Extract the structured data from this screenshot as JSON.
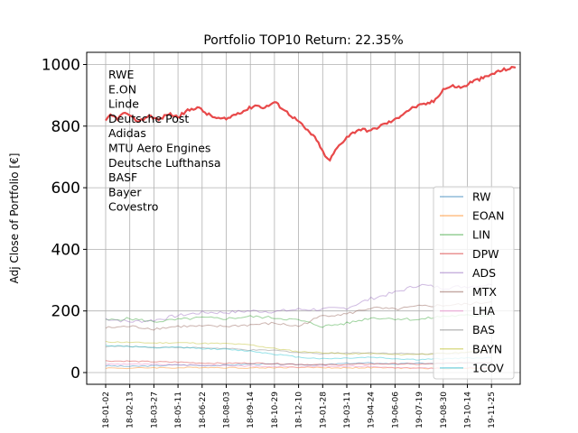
{
  "chart_data": {
    "type": "line",
    "title": "Portfolio TOP10 Return: 22.35%",
    "xlabel": "",
    "ylabel": "Adj Close of Portfolio [€]",
    "ylim": [
      -40,
      1040
    ],
    "yticks": [
      0,
      200,
      400,
      600,
      800,
      1000
    ],
    "grid": true,
    "legend_position": "lower-right",
    "x_tick_labels": [
      "18-01-02",
      "18-02-13",
      "18-03-27",
      "18-05-11",
      "18-06-22",
      "18-08-03",
      "18-09-14",
      "18-10-29",
      "18-12-10",
      "19-01-28",
      "19-03-11",
      "19-04-24",
      "19-06-06",
      "19-07-19",
      "19-08-30",
      "19-10-14",
      "19-11-25"
    ],
    "annotation_lines": [
      "RWE",
      "E.ON",
      "Linde",
      "Deutsche Post",
      "Adidas",
      "MTU Aero Engines",
      "Deutsche Lufthansa",
      "BASF",
      "Bayer",
      "Covestro"
    ],
    "portfolio": {
      "color": "#e8494a",
      "points": [
        [
          0,
          815
        ],
        [
          0.2,
          835
        ],
        [
          0.5,
          825
        ],
        [
          0.8,
          845
        ],
        [
          1,
          830
        ],
        [
          1.4,
          815
        ],
        [
          1.8,
          835
        ],
        [
          2.2,
          820
        ],
        [
          2.6,
          840
        ],
        [
          3,
          830
        ],
        [
          3.4,
          850
        ],
        [
          3.8,
          862
        ],
        [
          4.2,
          840
        ],
        [
          4.6,
          825
        ],
        [
          5,
          822
        ],
        [
          5.4,
          840
        ],
        [
          5.8,
          852
        ],
        [
          6.2,
          868
        ],
        [
          6.6,
          860
        ],
        [
          7,
          878
        ],
        [
          7.3,
          860
        ],
        [
          7.6,
          840
        ],
        [
          8,
          815
        ],
        [
          8.3,
          790
        ],
        [
          8.6,
          770
        ],
        [
          8.9,
          735
        ],
        [
          9.1,
          700
        ],
        [
          9.3,
          690
        ],
        [
          9.6,
          730
        ],
        [
          10,
          765
        ],
        [
          10.5,
          790
        ],
        [
          11,
          785
        ],
        [
          11.5,
          805
        ],
        [
          12,
          820
        ],
        [
          12.4,
          845
        ],
        [
          12.8,
          862
        ],
        [
          13.2,
          870
        ],
        [
          13.6,
          880
        ],
        [
          14,
          920
        ],
        [
          14.4,
          930
        ],
        [
          14.8,
          925
        ],
        [
          15.2,
          945
        ],
        [
          15.5,
          952
        ],
        [
          15.8,
          960
        ],
        [
          16.2,
          975
        ],
        [
          16.6,
          985
        ],
        [
          17.0,
          990
        ]
      ]
    },
    "series": [
      {
        "name": "RW",
        "color": "#1f77b4",
        "values": [
          22,
          20,
          22,
          25,
          23,
          24,
          28,
          27,
          26,
          25,
          30,
          31,
          28,
          30,
          29,
          31,
          30
        ]
      },
      {
        "name": "EOAN",
        "color": "#ff7f0e",
        "values": [
          15,
          14,
          16,
          15,
          17,
          16,
          15,
          16,
          17,
          16,
          15,
          16,
          15,
          14,
          13,
          14,
          15
        ]
      },
      {
        "name": "LIN",
        "color": "#2ca02c",
        "values": [
          170,
          175,
          165,
          172,
          178,
          175,
          182,
          178,
          170,
          150,
          160,
          178,
          175,
          172,
          183,
          185,
          187
        ]
      },
      {
        "name": "DPW",
        "color": "#d62728",
        "values": [
          38,
          37,
          35,
          34,
          31,
          30,
          31,
          29,
          27,
          25,
          26,
          28,
          29,
          27,
          30,
          32,
          33
        ]
      },
      {
        "name": "ADS",
        "color": "#9467bd",
        "values": [
          175,
          165,
          170,
          185,
          195,
          195,
          200,
          198,
          205,
          205,
          210,
          240,
          260,
          285,
          275,
          280,
          285
        ]
      },
      {
        "name": "MTX",
        "color": "#8c564b",
        "values": [
          145,
          150,
          142,
          150,
          150,
          150,
          155,
          160,
          150,
          185,
          190,
          210,
          205,
          215,
          218,
          222,
          230
        ]
      },
      {
        "name": "LHA",
        "color": "#e377c2",
        "values": [
          27,
          28,
          26,
          25,
          24,
          23,
          21,
          19,
          19,
          20,
          21,
          20,
          15,
          14,
          15,
          16,
          16
        ]
      },
      {
        "name": "BAS",
        "color": "#7f7f7f",
        "values": [
          85,
          85,
          82,
          82,
          80,
          78,
          73,
          72,
          65,
          62,
          64,
          64,
          62,
          60,
          62,
          64,
          66
        ]
      },
      {
        "name": "BAYN",
        "color": "#bcbd22",
        "values": [
          100,
          98,
          96,
          97,
          95,
          94,
          90,
          78,
          68,
          65,
          60,
          62,
          58,
          60,
          62,
          67,
          70
        ]
      },
      {
        "name": "1COV",
        "color": "#17becf",
        "values": [
          88,
          85,
          80,
          82,
          78,
          75,
          70,
          60,
          50,
          45,
          47,
          50,
          45,
          42,
          45,
          47,
          48
        ]
      }
    ]
  }
}
